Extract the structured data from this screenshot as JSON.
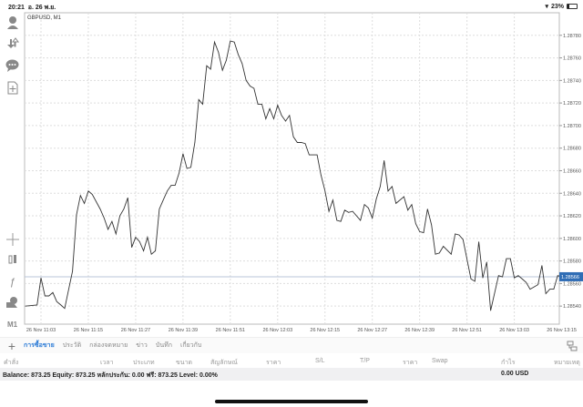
{
  "status": {
    "time": "20:21",
    "date": "อ. 26 พ.ย.",
    "battery": "23%",
    "battery_level": 0.23
  },
  "chart_title": "GBPUSD, M1",
  "toolbar": {
    "timeframe": "M1"
  },
  "chart_data": {
    "type": "line",
    "symbol": "GBPUSD",
    "timeframe": "M1",
    "x_tick_labels": [
      "26 Nov 11:03",
      "26 Nov 11:15",
      "26 Nov 11:27",
      "26 Nov 11:39",
      "26 Nov 11:51",
      "26 Nov 12:03",
      "26 Nov 12:15",
      "26 Nov 12:27",
      "26 Nov 12:39",
      "26 Nov 12:51",
      "26 Nov 13:03",
      "26 Nov 13:15"
    ],
    "y_tick_labels": [
      "1.28780",
      "1.28760",
      "1.28740",
      "1.28720",
      "1.28700",
      "1.28680",
      "1.28660",
      "1.28640",
      "1.28620",
      "1.28600",
      "1.28580",
      "1.28560",
      "1.28540"
    ],
    "ylim": [
      1.28524,
      1.288
    ],
    "grid": true,
    "current_price": "1.28566",
    "colors": {
      "line": "#333333",
      "grid": "#dddddd",
      "price_line": "#b8c4d8",
      "price_label": "#2f6db5"
    },
    "points": [
      [
        "10:59",
        1.2854
      ],
      [
        "11:02",
        1.28541
      ],
      [
        "11:03",
        1.28565
      ],
      [
        "11:04",
        1.28549
      ],
      [
        "11:05",
        1.28549
      ],
      [
        "11:06",
        1.28552
      ],
      [
        "11:07",
        1.28544
      ],
      [
        "11:08",
        1.28541
      ],
      [
        "11:09",
        1.28538
      ],
      [
        "11:11",
        1.28571
      ],
      [
        "11:12",
        1.28621
      ],
      [
        "11:13",
        1.28638
      ],
      [
        "11:14",
        1.28631
      ],
      [
        "11:15",
        1.28642
      ],
      [
        "11:16",
        1.28639
      ],
      [
        "11:18",
        1.28626
      ],
      [
        "11:19",
        1.28618
      ],
      [
        "11:20",
        1.28608
      ],
      [
        "11:21",
        1.28615
      ],
      [
        "11:22",
        1.28604
      ],
      [
        "11:23",
        1.2862
      ],
      [
        "11:24",
        1.28626
      ],
      [
        "11:25",
        1.28636
      ],
      [
        "11:26",
        1.28592
      ],
      [
        "11:27",
        1.28601
      ],
      [
        "11:28",
        1.28597
      ],
      [
        "11:29",
        1.28589
      ],
      [
        "11:30",
        1.28601
      ],
      [
        "11:31",
        1.28586
      ],
      [
        "11:32",
        1.28589
      ],
      [
        "11:33",
        1.28626
      ],
      [
        "11:34",
        1.28634
      ],
      [
        "11:35",
        1.28642
      ],
      [
        "11:36",
        1.28647
      ],
      [
        "11:37",
        1.28647
      ],
      [
        "11:38",
        1.28658
      ],
      [
        "11:39",
        1.28675
      ],
      [
        "11:40",
        1.28662
      ],
      [
        "11:41",
        1.28663
      ],
      [
        "11:42",
        1.28685
      ],
      [
        "11:43",
        1.28723
      ],
      [
        "11:44",
        1.28719
      ],
      [
        "11:45",
        1.28753
      ],
      [
        "11:46",
        1.2875
      ],
      [
        "11:47",
        1.28774
      ],
      [
        "11:48",
        1.28765
      ],
      [
        "11:49",
        1.28749
      ],
      [
        "11:50",
        1.28758
      ],
      [
        "11:51",
        1.28775
      ],
      [
        "11:52",
        1.28774
      ],
      [
        "11:53",
        1.28763
      ],
      [
        "11:54",
        1.28755
      ],
      [
        "11:55",
        1.2874
      ],
      [
        "11:56",
        1.28735
      ],
      [
        "11:57",
        1.28733
      ],
      [
        "11:58",
        1.28719
      ],
      [
        "11:59",
        1.28719
      ],
      [
        "12:00",
        1.28706
      ],
      [
        "12:01",
        1.28715
      ],
      [
        "12:02",
        1.28706
      ],
      [
        "12:03",
        1.28718
      ],
      [
        "12:04",
        1.28709
      ],
      [
        "12:05",
        1.28704
      ],
      [
        "12:06",
        1.28709
      ],
      [
        "12:07",
        1.2869
      ],
      [
        "12:08",
        1.28685
      ],
      [
        "12:09",
        1.28685
      ],
      [
        "12:10",
        1.28684
      ],
      [
        "12:11",
        1.28674
      ],
      [
        "12:12",
        1.28674
      ],
      [
        "12:13",
        1.28674
      ],
      [
        "12:14",
        1.28656
      ],
      [
        "12:15",
        1.28642
      ],
      [
        "12:16",
        1.28624
      ],
      [
        "12:17",
        1.28634
      ],
      [
        "12:18",
        1.28616
      ],
      [
        "12:19",
        1.28615
      ],
      [
        "12:20",
        1.28625
      ],
      [
        "12:21",
        1.28623
      ],
      [
        "12:22",
        1.28624
      ],
      [
        "12:24",
        1.28616
      ],
      [
        "12:25",
        1.2863
      ],
      [
        "12:26",
        1.28627
      ],
      [
        "12:27",
        1.28618
      ],
      [
        "12:28",
        1.28635
      ],
      [
        "12:29",
        1.28646
      ],
      [
        "12:30",
        1.28669
      ],
      [
        "12:31",
        1.28642
      ],
      [
        "12:32",
        1.28646
      ],
      [
        "12:33",
        1.28631
      ],
      [
        "12:35",
        1.28637
      ],
      [
        "12:36",
        1.28625
      ],
      [
        "12:37",
        1.2863
      ],
      [
        "12:38",
        1.28613
      ],
      [
        "12:39",
        1.28606
      ],
      [
        "12:40",
        1.28605
      ],
      [
        "12:41",
        1.28626
      ],
      [
        "12:42",
        1.28612
      ],
      [
        "12:43",
        1.28586
      ],
      [
        "12:44",
        1.28587
      ],
      [
        "12:45",
        1.28593
      ],
      [
        "12:47",
        1.28586
      ],
      [
        "12:48",
        1.28604
      ],
      [
        "12:49",
        1.28603
      ],
      [
        "12:50",
        1.28599
      ],
      [
        "12:52",
        1.28564
      ],
      [
        "12:53",
        1.28562
      ],
      [
        "12:54",
        1.28597
      ],
      [
        "12:55",
        1.28565
      ],
      [
        "12:56",
        1.28579
      ],
      [
        "12:57",
        1.28536
      ],
      [
        "12:59",
        1.28567
      ],
      [
        "13:00",
        1.28566
      ],
      [
        "13:01",
        1.28582
      ],
      [
        "13:02",
        1.28582
      ],
      [
        "13:03",
        1.28565
      ],
      [
        "13:04",
        1.28567
      ],
      [
        "13:05",
        1.28564
      ],
      [
        "13:06",
        1.28561
      ],
      [
        "13:07",
        1.28555
      ],
      [
        "13:08",
        1.28557
      ],
      [
        "13:09",
        1.28559
      ],
      [
        "13:10",
        1.28576
      ],
      [
        "13:11",
        1.28551
      ],
      [
        "13:12",
        1.28555
      ],
      [
        "13:13",
        1.28555
      ],
      [
        "13:14",
        1.28567
      ],
      [
        "13:15",
        1.28566
      ]
    ]
  },
  "tabs": [
    {
      "label": "การซื้อขาย",
      "active": true
    },
    {
      "label": "ประวัติ"
    },
    {
      "label": "กล่องจดหมาย"
    },
    {
      "label": "ข่าว"
    },
    {
      "label": "บันทึก"
    },
    {
      "label": "เกี่ยวกับ"
    }
  ],
  "columns": [
    "คำสั่ง",
    "เวลา",
    "ประเภท",
    "ขนาด",
    "สัญลักษณ์",
    "ราคา",
    "S/L",
    "T/P",
    "ราคา",
    "Swap",
    "กำไร",
    "หมายเหตุ"
  ],
  "balance": {
    "text": "Balance: 873.25 Equity: 873.25 หลักประกัน: 0.00 ฟรี: 873.25 Level: 0.00%",
    "profit": "0.00  USD"
  }
}
